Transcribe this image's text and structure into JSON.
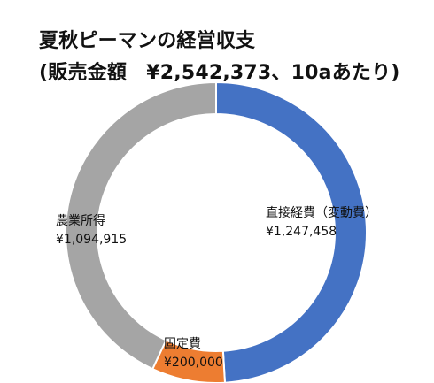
{
  "chart_data": {
    "type": "donut",
    "title": "夏秋ピーマンの経営収支",
    "subtitle": "(販売金額　¥2,542,373、10aあたり)",
    "slices": [
      {
        "label": "直接経費（変動費）",
        "value_label": "¥1,247,458",
        "value": 1247458,
        "color": "#4472C4"
      },
      {
        "label": "固定費",
        "value_label": "¥200,000",
        "value": 200000,
        "color": "#ED7D31"
      },
      {
        "label": "農業所得",
        "value_label": "¥1,094,915",
        "value": 1094915,
        "color": "#A5A5A5"
      }
    ],
    "legend": "none"
  }
}
